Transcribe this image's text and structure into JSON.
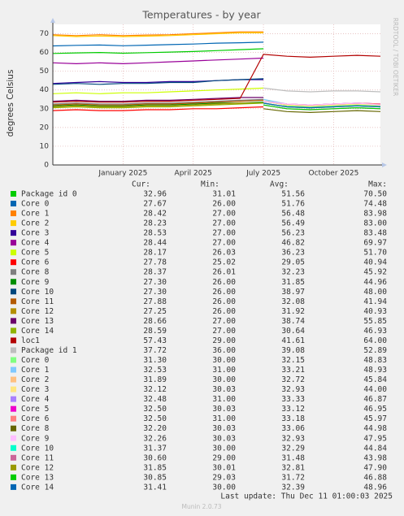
{
  "chart_data": {
    "type": "line",
    "title": "Temperatures - by year",
    "y_label": "degrees Celsius",
    "side_text": "RRDTOOL / TOBI OETIKER",
    "x": [
      "2024-10",
      "2024-11",
      "2024-12",
      "2025-01",
      "2025-02",
      "2025-03",
      "2025-04",
      "2025-05",
      "2025-06",
      "2025-07",
      "2025-08",
      "2025-09",
      "2025-10",
      "2025-11",
      "2025-12"
    ],
    "xlim": [
      "2024-10",
      "2025-12"
    ],
    "xticks": [
      {
        "value": "2025-01",
        "label": "January 2025"
      },
      {
        "value": "2025-04",
        "label": "April 2025"
      },
      {
        "value": "2025-07",
        "label": "July 2025"
      },
      {
        "value": "2025-10",
        "label": "October 2025"
      }
    ],
    "ylim": [
      0,
      75
    ],
    "yticks": [
      0,
      10,
      20,
      30,
      40,
      50,
      60,
      70
    ],
    "grid": true,
    "stat_headers": [
      "Cur:",
      "Min:",
      "Avg:",
      "Max:"
    ],
    "series": [
      {
        "name": "Package id 0",
        "color": "#00cc00",
        "values": [
          59.5,
          59.8,
          60,
          59.6,
          59.9,
          60.2,
          60.5,
          61,
          61.5,
          62,
          null,
          null,
          null,
          null,
          null
        ],
        "stats": [
          "32.96",
          "31.01",
          "51.56",
          "70.50"
        ]
      },
      {
        "name": "Core 0",
        "color": "#0066b3",
        "values": [
          63.5,
          63.8,
          64,
          63.6,
          63.9,
          64.2,
          64.5,
          65,
          65.2,
          65.5,
          null,
          null,
          null,
          null,
          null
        ],
        "stats": [
          "27.67",
          "26.00",
          "51.76",
          "74.48"
        ]
      },
      {
        "name": "Core 1",
        "color": "#ff8000",
        "values": [
          69.5,
          69,
          69.5,
          69,
          69.3,
          69.5,
          70,
          70.5,
          71,
          71,
          null,
          null,
          null,
          null,
          null
        ],
        "stats": [
          "28.42",
          "27.00",
          "56.48",
          "83.98"
        ]
      },
      {
        "name": "Core 2",
        "color": "#ffcc00",
        "values": [
          69,
          68.5,
          68.8,
          68.5,
          68.7,
          69,
          69.5,
          70,
          70.5,
          70.5,
          null,
          null,
          null,
          null,
          null
        ],
        "stats": [
          "28.23",
          "27.00",
          "56.49",
          "83.00"
        ]
      },
      {
        "name": "Core 3",
        "color": "#330099",
        "values": [
          43.5,
          44,
          44.5,
          44,
          44,
          44.5,
          44.5,
          45,
          45.5,
          45.5,
          null,
          null,
          null,
          null,
          null
        ],
        "stats": [
          "28.53",
          "27.00",
          "56.23",
          "83.48"
        ]
      },
      {
        "name": "Core 4",
        "color": "#990099",
        "values": [
          54.5,
          54,
          54.5,
          54,
          54.5,
          55,
          55.5,
          56,
          56.5,
          57,
          null,
          null,
          null,
          null,
          null
        ],
        "stats": [
          "28.44",
          "27.00",
          "46.82",
          "69.97"
        ]
      },
      {
        "name": "Core 5",
        "color": "#ccff00",
        "values": [
          38,
          38.5,
          38,
          38.5,
          38.5,
          39,
          39.5,
          40,
          40.5,
          41,
          null,
          null,
          null,
          null,
          null
        ],
        "stats": [
          "28.17",
          "26.03",
          "36.23",
          "51.70"
        ]
      },
      {
        "name": "Core 6",
        "color": "#ff0000",
        "values": [
          29,
          29.5,
          29,
          29,
          29.5,
          29.5,
          30,
          30,
          30.5,
          31,
          null,
          null,
          null,
          null,
          null
        ],
        "stats": [
          "27.78",
          "25.02",
          "29.05",
          "40.94"
        ]
      },
      {
        "name": "Core 8",
        "color": "#808080",
        "values": [
          32.5,
          33,
          32.5,
          32.5,
          33,
          33,
          33.5,
          34,
          34.5,
          35,
          null,
          null,
          null,
          null,
          null
        ],
        "stats": [
          "28.37",
          "26.01",
          "32.23",
          "45.92"
        ]
      },
      {
        "name": "Core 9",
        "color": "#008f00",
        "values": [
          31.5,
          32,
          31.5,
          31.5,
          32,
          32,
          32.5,
          33,
          33,
          33.5,
          null,
          null,
          null,
          null,
          null
        ],
        "stats": [
          "27.30",
          "26.00",
          "31.85",
          "44.96"
        ]
      },
      {
        "name": "Core 10",
        "color": "#00487d",
        "values": [
          43,
          43.5,
          43,
          43.5,
          43.5,
          44,
          44,
          45,
          45.5,
          46,
          null,
          null,
          null,
          null,
          null
        ],
        "stats": [
          "27.30",
          "26.00",
          "38.97",
          "48.00"
        ]
      },
      {
        "name": "Core 11",
        "color": "#b35a00",
        "values": [
          32,
          32.5,
          32,
          32,
          32.5,
          32.5,
          33,
          33.5,
          34,
          34.5,
          null,
          null,
          null,
          null,
          null
        ],
        "stats": [
          "27.88",
          "26.00",
          "32.08",
          "41.94"
        ]
      },
      {
        "name": "Core 12",
        "color": "#b38f00",
        "values": [
          31,
          31.5,
          31,
          31,
          31.5,
          31.5,
          32,
          32.5,
          33,
          33,
          null,
          null,
          null,
          null,
          null
        ],
        "stats": [
          "27.25",
          "26.00",
          "31.92",
          "40.93"
        ]
      },
      {
        "name": "Core 13",
        "color": "#6b006b",
        "values": [
          34,
          34.5,
          34,
          34,
          34.5,
          34.5,
          35,
          35.5,
          36,
          36,
          null,
          null,
          null,
          null,
          null
        ],
        "stats": [
          "28.66",
          "27.00",
          "38.74",
          "55.85"
        ]
      },
      {
        "name": "Core 14",
        "color": "#8fb300",
        "values": [
          30.5,
          31,
          30.5,
          30.5,
          31,
          31,
          31.5,
          32,
          32.5,
          33,
          null,
          null,
          null,
          null,
          null
        ],
        "stats": [
          "28.59",
          "27.00",
          "30.64",
          "46.93"
        ]
      },
      {
        "name": "loc1",
        "color": "#b30000",
        "values": [
          33.5,
          34,
          33.5,
          33.5,
          34,
          34,
          34.5,
          35,
          35.5,
          59,
          58,
          57.5,
          58,
          58.5,
          58
        ],
        "stats": [
          "57.43",
          "29.00",
          "41.61",
          "64.00"
        ]
      },
      {
        "name": "Package id 1",
        "color": "#bebebe",
        "values": [
          null,
          null,
          null,
          null,
          null,
          null,
          null,
          null,
          null,
          41,
          39.5,
          39,
          39.5,
          39.5,
          39
        ],
        "stats": [
          "37.72",
          "36.00",
          "39.08",
          "52.89"
        ]
      },
      {
        "name": "Core 0",
        "color": "#80ff80",
        "values": [
          null,
          null,
          null,
          null,
          null,
          null,
          null,
          null,
          null,
          35,
          31.5,
          31,
          31.5,
          32,
          31.5
        ],
        "stats": [
          "31.30",
          "30.00",
          "32.15",
          "48.83"
        ]
      },
      {
        "name": "Core 1",
        "color": "#80c9ff",
        "values": [
          null,
          null,
          null,
          null,
          null,
          null,
          null,
          null,
          null,
          35,
          32.5,
          32,
          32.5,
          33,
          32.5
        ],
        "stats": [
          "32.53",
          "31.00",
          "33.21",
          "48.93"
        ]
      },
      {
        "name": "Core 2",
        "color": "#ffc080",
        "values": [
          null,
          null,
          null,
          null,
          null,
          null,
          null,
          null,
          null,
          34,
          32,
          31.5,
          32,
          32.5,
          32
        ],
        "stats": [
          "31.89",
          "30.00",
          "32.72",
          "45.84"
        ]
      },
      {
        "name": "Core 3",
        "color": "#ffe680",
        "values": [
          null,
          null,
          null,
          null,
          null,
          null,
          null,
          null,
          null,
          34,
          32,
          31.5,
          32,
          32.5,
          32
        ],
        "stats": [
          "32.12",
          "30.03",
          "32.93",
          "44.00"
        ]
      },
      {
        "name": "Core 4",
        "color": "#aa80ff",
        "values": [
          null,
          null,
          null,
          null,
          null,
          null,
          null,
          null,
          null,
          34,
          32.5,
          32,
          32.5,
          33,
          32.5
        ],
        "stats": [
          "32.48",
          "31.00",
          "33.33",
          "46.87"
        ]
      },
      {
        "name": "Core 5",
        "color": "#ee00cc",
        "values": [
          null,
          null,
          null,
          null,
          null,
          null,
          null,
          null,
          null,
          34,
          32.5,
          32,
          32.5,
          33,
          32.5
        ],
        "stats": [
          "32.50",
          "30.03",
          "33.12",
          "46.95"
        ]
      },
      {
        "name": "Core 6",
        "color": "#ff8080",
        "values": [
          null,
          null,
          null,
          null,
          null,
          null,
          null,
          null,
          null,
          34,
          32.5,
          32,
          32.5,
          33,
          32.5
        ],
        "stats": [
          "32.50",
          "31.00",
          "33.18",
          "45.97"
        ]
      },
      {
        "name": "Core 8",
        "color": "#666600",
        "values": [
          null,
          null,
          null,
          null,
          null,
          null,
          null,
          null,
          null,
          30,
          28.5,
          28,
          28.5,
          29,
          28.5
        ],
        "stats": [
          "32.20",
          "30.03",
          "33.06",
          "44.98"
        ]
      },
      {
        "name": "Core 9",
        "color": "#ffbfff",
        "values": [
          null,
          null,
          null,
          null,
          null,
          null,
          null,
          null,
          null,
          34,
          32.5,
          32,
          32.5,
          33,
          32
        ],
        "stats": [
          "32.26",
          "30.03",
          "32.93",
          "47.95"
        ]
      },
      {
        "name": "Core 10",
        "color": "#00ffcc",
        "values": [
          null,
          null,
          null,
          null,
          null,
          null,
          null,
          null,
          null,
          33,
          31,
          30.5,
          31,
          31.5,
          31
        ],
        "stats": [
          "31.37",
          "30.00",
          "32.29",
          "44.84"
        ]
      },
      {
        "name": "Core 11",
        "color": "#cc6699",
        "values": [
          null,
          null,
          null,
          null,
          null,
          null,
          null,
          null,
          null,
          32,
          30,
          29.5,
          30,
          30.5,
          30
        ],
        "stats": [
          "30.60",
          "29.00",
          "31.48",
          "43.98"
        ]
      },
      {
        "name": "Core 12",
        "color": "#999900",
        "values": [
          null,
          null,
          null,
          null,
          null,
          null,
          null,
          null,
          null,
          33,
          31,
          30.5,
          31,
          31.5,
          31
        ],
        "stats": [
          "31.85",
          "30.01",
          "32.81",
          "47.90"
        ]
      },
      {
        "name": "Core 13",
        "color": "#00cc00",
        "values": [
          null,
          null,
          null,
          null,
          null,
          null,
          null,
          null,
          null,
          32,
          30,
          29.5,
          30,
          30.5,
          30
        ],
        "stats": [
          "30.85",
          "29.03",
          "31.72",
          "46.88"
        ]
      },
      {
        "name": "Core 14",
        "color": "#0066b3",
        "values": [
          null,
          null,
          null,
          null,
          null,
          null,
          null,
          null,
          null,
          33,
          31,
          30.5,
          31,
          31.5,
          31
        ],
        "stats": [
          "31.41",
          "30.00",
          "32.39",
          "48.96"
        ]
      }
    ],
    "last_update": "Last update: Thu Dec 11 01:00:03 2025",
    "footer": "Munin 2.0.73"
  }
}
